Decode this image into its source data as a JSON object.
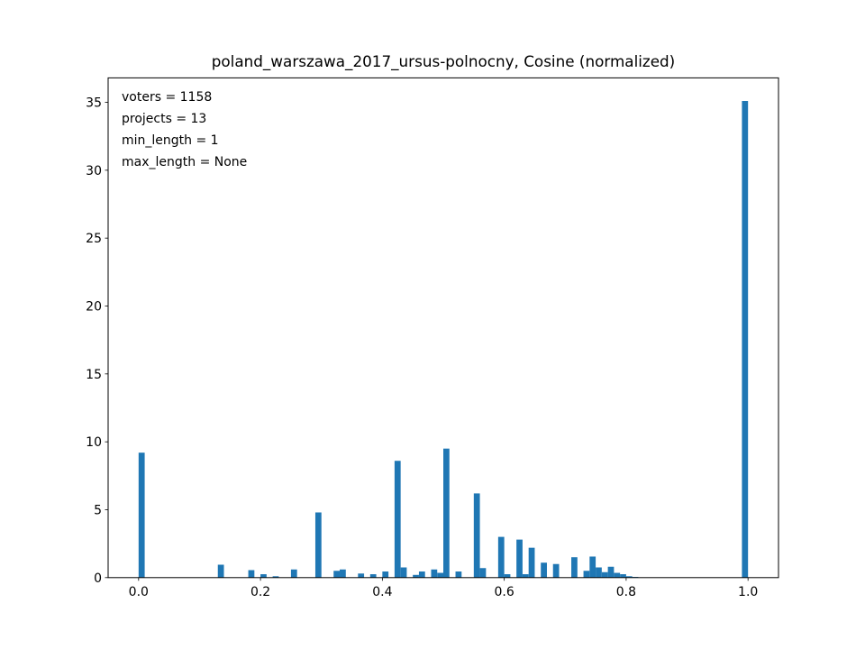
{
  "chart_data": {
    "type": "bar",
    "title": "poland_warszawa_2017_ursus-polnocny, Cosine (normalized)",
    "xlabel": "",
    "ylabel": "",
    "xlim": [
      -0.05,
      1.05
    ],
    "ylim": [
      0,
      36.8
    ],
    "grid": false,
    "bar_color": "#1f77b4",
    "bin_width": 0.01,
    "x_ticks": [
      {
        "value": 0.0,
        "label": "0.0"
      },
      {
        "value": 0.2,
        "label": "0.2"
      },
      {
        "value": 0.4,
        "label": "0.4"
      },
      {
        "value": 0.6,
        "label": "0.6"
      },
      {
        "value": 0.8,
        "label": "0.8"
      },
      {
        "value": 1.0,
        "label": "1.0"
      }
    ],
    "y_ticks": [
      {
        "value": 0,
        "label": "0"
      },
      {
        "value": 5,
        "label": "5"
      },
      {
        "value": 10,
        "label": "10"
      },
      {
        "value": 15,
        "label": "15"
      },
      {
        "value": 20,
        "label": "20"
      },
      {
        "value": 25,
        "label": "25"
      },
      {
        "value": 30,
        "label": "30"
      },
      {
        "value": 35,
        "label": "35"
      }
    ],
    "annotations": [
      "voters = 1158",
      "projects = 13",
      "min_length = 1",
      "max_length = None"
    ],
    "bins": [
      {
        "x": 0.0,
        "value": 9.2
      },
      {
        "x": 0.13,
        "value": 0.95
      },
      {
        "x": 0.18,
        "value": 0.55
      },
      {
        "x": 0.2,
        "value": 0.25
      },
      {
        "x": 0.22,
        "value": 0.1
      },
      {
        "x": 0.25,
        "value": 0.6
      },
      {
        "x": 0.29,
        "value": 4.8
      },
      {
        "x": 0.32,
        "value": 0.5
      },
      {
        "x": 0.33,
        "value": 0.6
      },
      {
        "x": 0.36,
        "value": 0.3
      },
      {
        "x": 0.38,
        "value": 0.25
      },
      {
        "x": 0.4,
        "value": 0.45
      },
      {
        "x": 0.42,
        "value": 8.6
      },
      {
        "x": 0.43,
        "value": 0.75
      },
      {
        "x": 0.45,
        "value": 0.2
      },
      {
        "x": 0.46,
        "value": 0.45
      },
      {
        "x": 0.48,
        "value": 0.6
      },
      {
        "x": 0.49,
        "value": 0.35
      },
      {
        "x": 0.5,
        "value": 9.5
      },
      {
        "x": 0.52,
        "value": 0.45
      },
      {
        "x": 0.55,
        "value": 6.2
      },
      {
        "x": 0.56,
        "value": 0.7
      },
      {
        "x": 0.59,
        "value": 3.0
      },
      {
        "x": 0.6,
        "value": 0.25
      },
      {
        "x": 0.62,
        "value": 2.8
      },
      {
        "x": 0.63,
        "value": 0.25
      },
      {
        "x": 0.64,
        "value": 2.2
      },
      {
        "x": 0.66,
        "value": 1.1
      },
      {
        "x": 0.68,
        "value": 1.0
      },
      {
        "x": 0.71,
        "value": 1.5
      },
      {
        "x": 0.73,
        "value": 0.5
      },
      {
        "x": 0.74,
        "value": 1.55
      },
      {
        "x": 0.75,
        "value": 0.75
      },
      {
        "x": 0.76,
        "value": 0.4
      },
      {
        "x": 0.77,
        "value": 0.8
      },
      {
        "x": 0.78,
        "value": 0.35
      },
      {
        "x": 0.79,
        "value": 0.25
      },
      {
        "x": 0.8,
        "value": 0.1
      },
      {
        "x": 0.81,
        "value": 0.05
      },
      {
        "x": 0.99,
        "value": 35.1
      }
    ]
  }
}
